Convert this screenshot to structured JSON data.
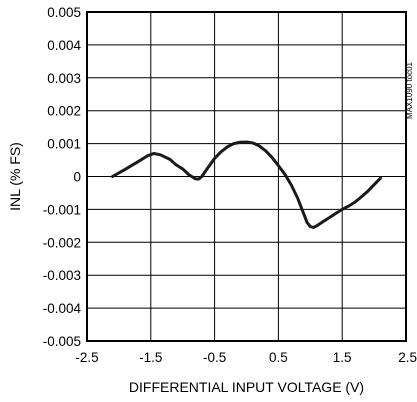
{
  "chart_data": {
    "type": "line",
    "title": "",
    "xlabel": "DIFFERENTIAL INPUT VOLTAGE (V)",
    "ylabel": "INL (% FS)",
    "xlim": [
      -2.5,
      2.5
    ],
    "ylim": [
      -0.005,
      0.005
    ],
    "x_ticks": [
      "-2.5",
      "-1.5",
      "-0.5",
      "0.5",
      "1.5",
      "2.5"
    ],
    "y_ticks": [
      "0.005",
      "0.004",
      "0.003",
      "0.002",
      "0.001",
      "0",
      "-0.001",
      "-0.002",
      "-0.003",
      "-0.004",
      "-0.005"
    ],
    "grid": true,
    "legend": false,
    "watermark": "MAX1090 toc01",
    "line_color": "#1a1a1a",
    "series": [
      {
        "x": [
          -2.1,
          -1.9,
          -1.7,
          -1.55,
          -1.45,
          -1.35,
          -1.2,
          -1.1,
          -1.0,
          -0.9,
          -0.8,
          -0.75,
          -0.7,
          -0.6,
          -0.5,
          -0.4,
          -0.3,
          -0.2,
          -0.1,
          0.0,
          0.1,
          0.2,
          0.3,
          0.4,
          0.5,
          0.6,
          0.7,
          0.8,
          0.9,
          0.95,
          1.0,
          1.05,
          1.1,
          1.2,
          1.3,
          1.4,
          1.5,
          1.6,
          1.7,
          1.8,
          1.9,
          2.0,
          2.1
        ],
        "y": [
          0.0,
          0.00022,
          0.00045,
          0.00063,
          0.0007,
          0.00066,
          0.00052,
          0.00035,
          0.00023,
          5e-05,
          -7e-05,
          -8e-05,
          0.0,
          0.00028,
          0.00055,
          0.00075,
          0.0009,
          0.001,
          0.00104,
          0.00105,
          0.00102,
          0.00093,
          0.00078,
          0.00058,
          0.00033,
          7e-05,
          -0.00025,
          -0.00065,
          -0.00115,
          -0.0014,
          -0.00152,
          -0.00155,
          -0.0015,
          -0.00137,
          -0.00125,
          -0.00112,
          -0.001,
          -0.0009,
          -0.00078,
          -0.00062,
          -0.00045,
          -0.00025,
          -5e-05
        ]
      }
    ]
  }
}
